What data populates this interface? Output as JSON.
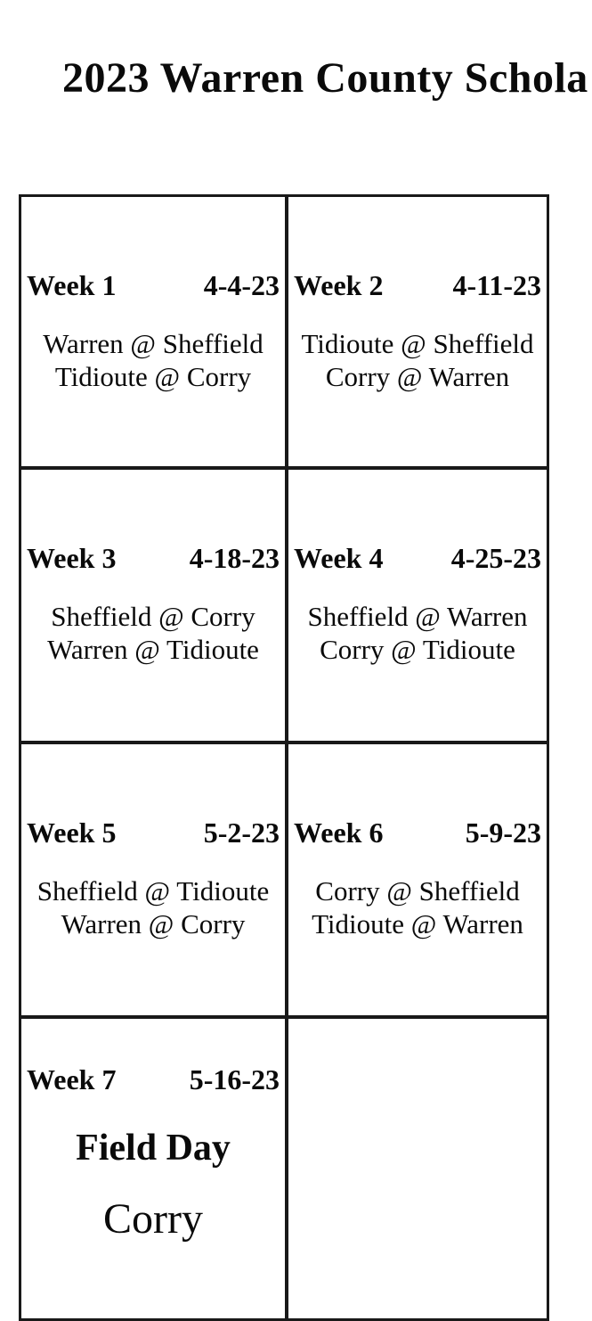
{
  "page": {
    "title": "2023 Warren County Schola",
    "background_color": "#ffffff",
    "text_color": "#0a0a0a",
    "table_border_color": "#191919"
  },
  "schedule": {
    "weeks": [
      {
        "label": "Week 1",
        "date": "4-4-23",
        "games": [
          "Warren @ Sheffield",
          "Tidioute @ Corry"
        ]
      },
      {
        "label": "Week 2",
        "date": "4-11-23",
        "games": [
          "Tidioute @ Sheffield",
          "Corry @ Warren"
        ]
      },
      {
        "label": "Week 3",
        "date": "4-18-23",
        "games": [
          "Sheffield @ Corry",
          "Warren @ Tidioute"
        ]
      },
      {
        "label": "Week 4",
        "date": "4-25-23",
        "games": [
          "Sheffield @ Warren",
          "Corry @ Tidioute"
        ]
      },
      {
        "label": "Week 5",
        "date": "5-2-23",
        "games": [
          "Sheffield @ Tidioute",
          "Warren @ Corry"
        ]
      },
      {
        "label": "Week 6",
        "date": "5-9-23",
        "games": [
          "Corry @ Sheffield",
          "Tidioute @ Warren"
        ]
      },
      {
        "label": "Week 7",
        "date": "5-16-23",
        "event": "Field Day",
        "location": "Corry"
      }
    ]
  }
}
